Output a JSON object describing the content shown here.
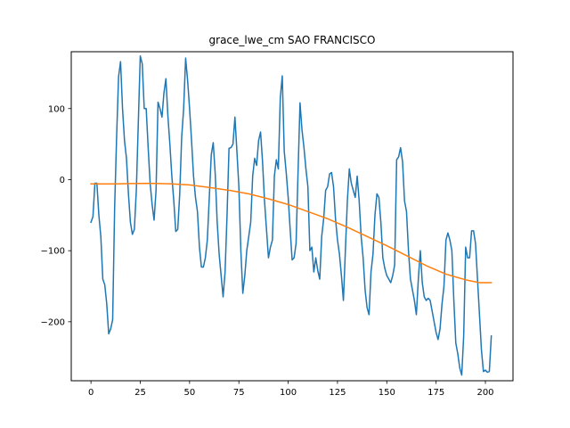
{
  "chart_data": {
    "type": "line",
    "title": "grace_lwe_cm SAO FRANCISCO",
    "xlabel": "",
    "ylabel": "",
    "xlim": [
      -10,
      214
    ],
    "ylim": [
      -283,
      180
    ],
    "x_ticks": [
      0,
      25,
      50,
      75,
      100,
      125,
      150,
      175,
      200
    ],
    "y_ticks": [
      -200,
      -100,
      0,
      100
    ],
    "x_tick_labels": [
      "0",
      "25",
      "50",
      "75",
      "100",
      "125",
      "150",
      "175",
      "200"
    ],
    "y_tick_labels": [
      "−200",
      "−100",
      "0",
      "100"
    ],
    "grid": false,
    "legend": "none",
    "series": [
      {
        "color": "#1f77b4",
        "points": [
          [
            0,
            -60
          ],
          [
            1,
            -52
          ],
          [
            2,
            -5
          ],
          [
            3,
            -5
          ],
          [
            4,
            -50
          ],
          [
            5,
            -80
          ],
          [
            6,
            -140
          ],
          [
            7,
            -148
          ],
          [
            8,
            -175
          ],
          [
            9,
            -217
          ],
          [
            10,
            -210
          ],
          [
            11,
            -197
          ],
          [
            12,
            -40
          ],
          [
            13,
            60
          ],
          [
            14,
            145
          ],
          [
            15,
            166
          ],
          [
            16,
            100
          ],
          [
            17,
            55
          ],
          [
            18,
            30
          ],
          [
            19,
            -20
          ],
          [
            20,
            -60
          ],
          [
            21,
            -77
          ],
          [
            22,
            -70
          ],
          [
            23,
            -15
          ],
          [
            24,
            80
          ],
          [
            25,
            174
          ],
          [
            26,
            163
          ],
          [
            27,
            100
          ],
          [
            28,
            100
          ],
          [
            29,
            45
          ],
          [
            30,
            -5
          ],
          [
            31,
            -35
          ],
          [
            32,
            -57
          ],
          [
            33,
            -15
          ],
          [
            34,
            109
          ],
          [
            35,
            100
          ],
          [
            36,
            88
          ],
          [
            37,
            122
          ],
          [
            38,
            142
          ],
          [
            39,
            90
          ],
          [
            40,
            50
          ],
          [
            41,
            5
          ],
          [
            42,
            -30
          ],
          [
            43,
            -73
          ],
          [
            44,
            -70
          ],
          [
            45,
            -20
          ],
          [
            46,
            60
          ],
          [
            47,
            100
          ],
          [
            48,
            171
          ],
          [
            49,
            140
          ],
          [
            50,
            100
          ],
          [
            51,
            55
          ],
          [
            52,
            5
          ],
          [
            53,
            -25
          ],
          [
            54,
            -45
          ],
          [
            55,
            -95
          ],
          [
            56,
            -123
          ],
          [
            57,
            -123
          ],
          [
            58,
            -110
          ],
          [
            59,
            -85
          ],
          [
            60,
            -25
          ],
          [
            61,
            35
          ],
          [
            62,
            52
          ],
          [
            63,
            8
          ],
          [
            64,
            -60
          ],
          [
            65,
            -105
          ],
          [
            66,
            -135
          ],
          [
            67,
            -165
          ],
          [
            68,
            -130
          ],
          [
            69,
            -50
          ],
          [
            70,
            44
          ],
          [
            71,
            45
          ],
          [
            72,
            50
          ],
          [
            73,
            88
          ],
          [
            74,
            40
          ],
          [
            75,
            -10
          ],
          [
            76,
            -100
          ],
          [
            77,
            -160
          ],
          [
            78,
            -135
          ],
          [
            79,
            -100
          ],
          [
            80,
            -80
          ],
          [
            81,
            -60
          ],
          [
            82,
            5
          ],
          [
            83,
            30
          ],
          [
            84,
            20
          ],
          [
            85,
            55
          ],
          [
            86,
            67
          ],
          [
            87,
            25
          ],
          [
            88,
            -30
          ],
          [
            89,
            -70
          ],
          [
            90,
            -110
          ],
          [
            91,
            -95
          ],
          [
            92,
            -85
          ],
          [
            93,
            5
          ],
          [
            94,
            28
          ],
          [
            95,
            15
          ],
          [
            96,
            115
          ],
          [
            97,
            146
          ],
          [
            98,
            40
          ],
          [
            99,
            10
          ],
          [
            100,
            -25
          ],
          [
            101,
            -70
          ],
          [
            102,
            -113
          ],
          [
            103,
            -110
          ],
          [
            104,
            -90
          ],
          [
            105,
            10
          ],
          [
            106,
            108
          ],
          [
            107,
            70
          ],
          [
            108,
            45
          ],
          [
            109,
            15
          ],
          [
            110,
            -10
          ],
          [
            111,
            -100
          ],
          [
            112,
            -95
          ],
          [
            113,
            -130
          ],
          [
            114,
            -110
          ],
          [
            115,
            -128
          ],
          [
            116,
            -140
          ],
          [
            117,
            -80
          ],
          [
            118,
            -55
          ],
          [
            119,
            -15
          ],
          [
            120,
            -10
          ],
          [
            121,
            8
          ],
          [
            122,
            10
          ],
          [
            123,
            -10
          ],
          [
            124,
            -55
          ],
          [
            125,
            -85
          ],
          [
            126,
            -105
          ],
          [
            127,
            -135
          ],
          [
            128,
            -170
          ],
          [
            129,
            -100
          ],
          [
            130,
            -30
          ],
          [
            131,
            15
          ],
          [
            132,
            -5
          ],
          [
            133,
            -15
          ],
          [
            134,
            -25
          ],
          [
            135,
            5
          ],
          [
            136,
            -30
          ],
          [
            137,
            -80
          ],
          [
            138,
            -110
          ],
          [
            139,
            -155
          ],
          [
            140,
            -180
          ],
          [
            141,
            -190
          ],
          [
            142,
            -130
          ],
          [
            143,
            -105
          ],
          [
            144,
            -50
          ],
          [
            145,
            -20
          ],
          [
            146,
            -25
          ],
          [
            147,
            -60
          ],
          [
            148,
            -110
          ],
          [
            149,
            -125
          ],
          [
            150,
            -135
          ],
          [
            151,
            -140
          ],
          [
            152,
            -145
          ],
          [
            153,
            -135
          ],
          [
            154,
            -120
          ],
          [
            155,
            28
          ],
          [
            156,
            32
          ],
          [
            157,
            45
          ],
          [
            158,
            25
          ],
          [
            159,
            -30
          ],
          [
            160,
            -45
          ],
          [
            161,
            -100
          ],
          [
            162,
            -140
          ],
          [
            163,
            -155
          ],
          [
            164,
            -170
          ],
          [
            165,
            -190
          ],
          [
            166,
            -140
          ],
          [
            167,
            -100
          ],
          [
            168,
            -145
          ],
          [
            169,
            -165
          ],
          [
            170,
            -170
          ],
          [
            171,
            -167
          ],
          [
            172,
            -170
          ],
          [
            173,
            -185
          ],
          [
            174,
            -200
          ],
          [
            175,
            -215
          ],
          [
            176,
            -225
          ],
          [
            177,
            -210
          ],
          [
            178,
            -175
          ],
          [
            179,
            -150
          ],
          [
            180,
            -85
          ],
          [
            181,
            -75
          ],
          [
            182,
            -85
          ],
          [
            183,
            -100
          ],
          [
            184,
            -170
          ],
          [
            185,
            -230
          ],
          [
            186,
            -245
          ],
          [
            187,
            -265
          ],
          [
            188,
            -275
          ],
          [
            189,
            -220
          ],
          [
            190,
            -95
          ],
          [
            191,
            -110
          ],
          [
            192,
            -110
          ],
          [
            193,
            -72
          ],
          [
            194,
            -72
          ],
          [
            195,
            -90
          ],
          [
            196,
            -140
          ],
          [
            197,
            -190
          ],
          [
            198,
            -240
          ],
          [
            199,
            -270
          ],
          [
            200,
            -268
          ],
          [
            201,
            -271
          ],
          [
            202,
            -270
          ],
          [
            203,
            -220
          ]
        ]
      },
      {
        "color": "#ff7f0e",
        "points": [
          [
            0,
            -6
          ],
          [
            10,
            -6
          ],
          [
            20,
            -5.5
          ],
          [
            30,
            -5.3
          ],
          [
            40,
            -5.8
          ],
          [
            50,
            -7.5
          ],
          [
            60,
            -11
          ],
          [
            70,
            -15
          ],
          [
            80,
            -20
          ],
          [
            90,
            -27
          ],
          [
            100,
            -35
          ],
          [
            110,
            -45
          ],
          [
            120,
            -55
          ],
          [
            130,
            -67
          ],
          [
            140,
            -80
          ],
          [
            150,
            -93
          ],
          [
            160,
            -107
          ],
          [
            170,
            -121
          ],
          [
            180,
            -133
          ],
          [
            190,
            -141
          ],
          [
            197,
            -145
          ],
          [
            203,
            -145
          ]
        ]
      }
    ]
  }
}
